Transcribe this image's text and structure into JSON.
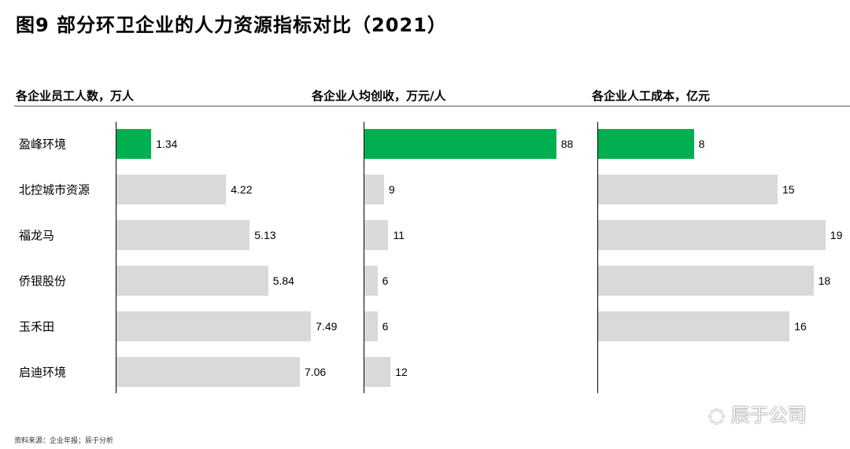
{
  "title": "图9 部分环卫企业的人力资源指标对比（2021）",
  "source": "资料来源：企业年报；辰于分析",
  "watermark": "辰于公司",
  "colors": {
    "highlight": "#00b050",
    "default": "#d9d9d9"
  },
  "chart_data": [
    {
      "type": "bar",
      "orientation": "horizontal",
      "title": "各企业员工人数，万人",
      "categories": [
        "盈峰环境",
        "北控城市资源",
        "福龙马",
        "侨银股份",
        "玉禾田",
        "启迪环境"
      ],
      "values": [
        1.34,
        4.22,
        5.13,
        5.84,
        7.49,
        7.06
      ],
      "labels": [
        "1.34",
        "4.22",
        "5.13",
        "5.84",
        "7.49",
        "7.06"
      ],
      "highlight": "盈峰环境"
    },
    {
      "type": "bar",
      "orientation": "horizontal",
      "title": "各企业人均创收，万元/人",
      "categories": [
        "盈峰环境",
        "北控城市资源",
        "福龙马",
        "侨银股份",
        "玉禾田",
        "启迪环境"
      ],
      "values": [
        88,
        9,
        11,
        6,
        6,
        12
      ],
      "labels": [
        "88",
        "9",
        "11",
        "6",
        "6",
        "12"
      ],
      "highlight": "盈峰环境"
    },
    {
      "type": "bar",
      "orientation": "horizontal",
      "title": "各企业人工成本，亿元",
      "categories": [
        "盈峰环境",
        "北控城市资源",
        "福龙马",
        "侨银股份",
        "玉禾田",
        "启迪环境"
      ],
      "values": [
        8,
        15,
        19,
        18,
        16,
        null
      ],
      "labels": [
        "8",
        "15",
        "19",
        "18",
        "16",
        ""
      ],
      "highlight": "盈峰环境"
    }
  ]
}
